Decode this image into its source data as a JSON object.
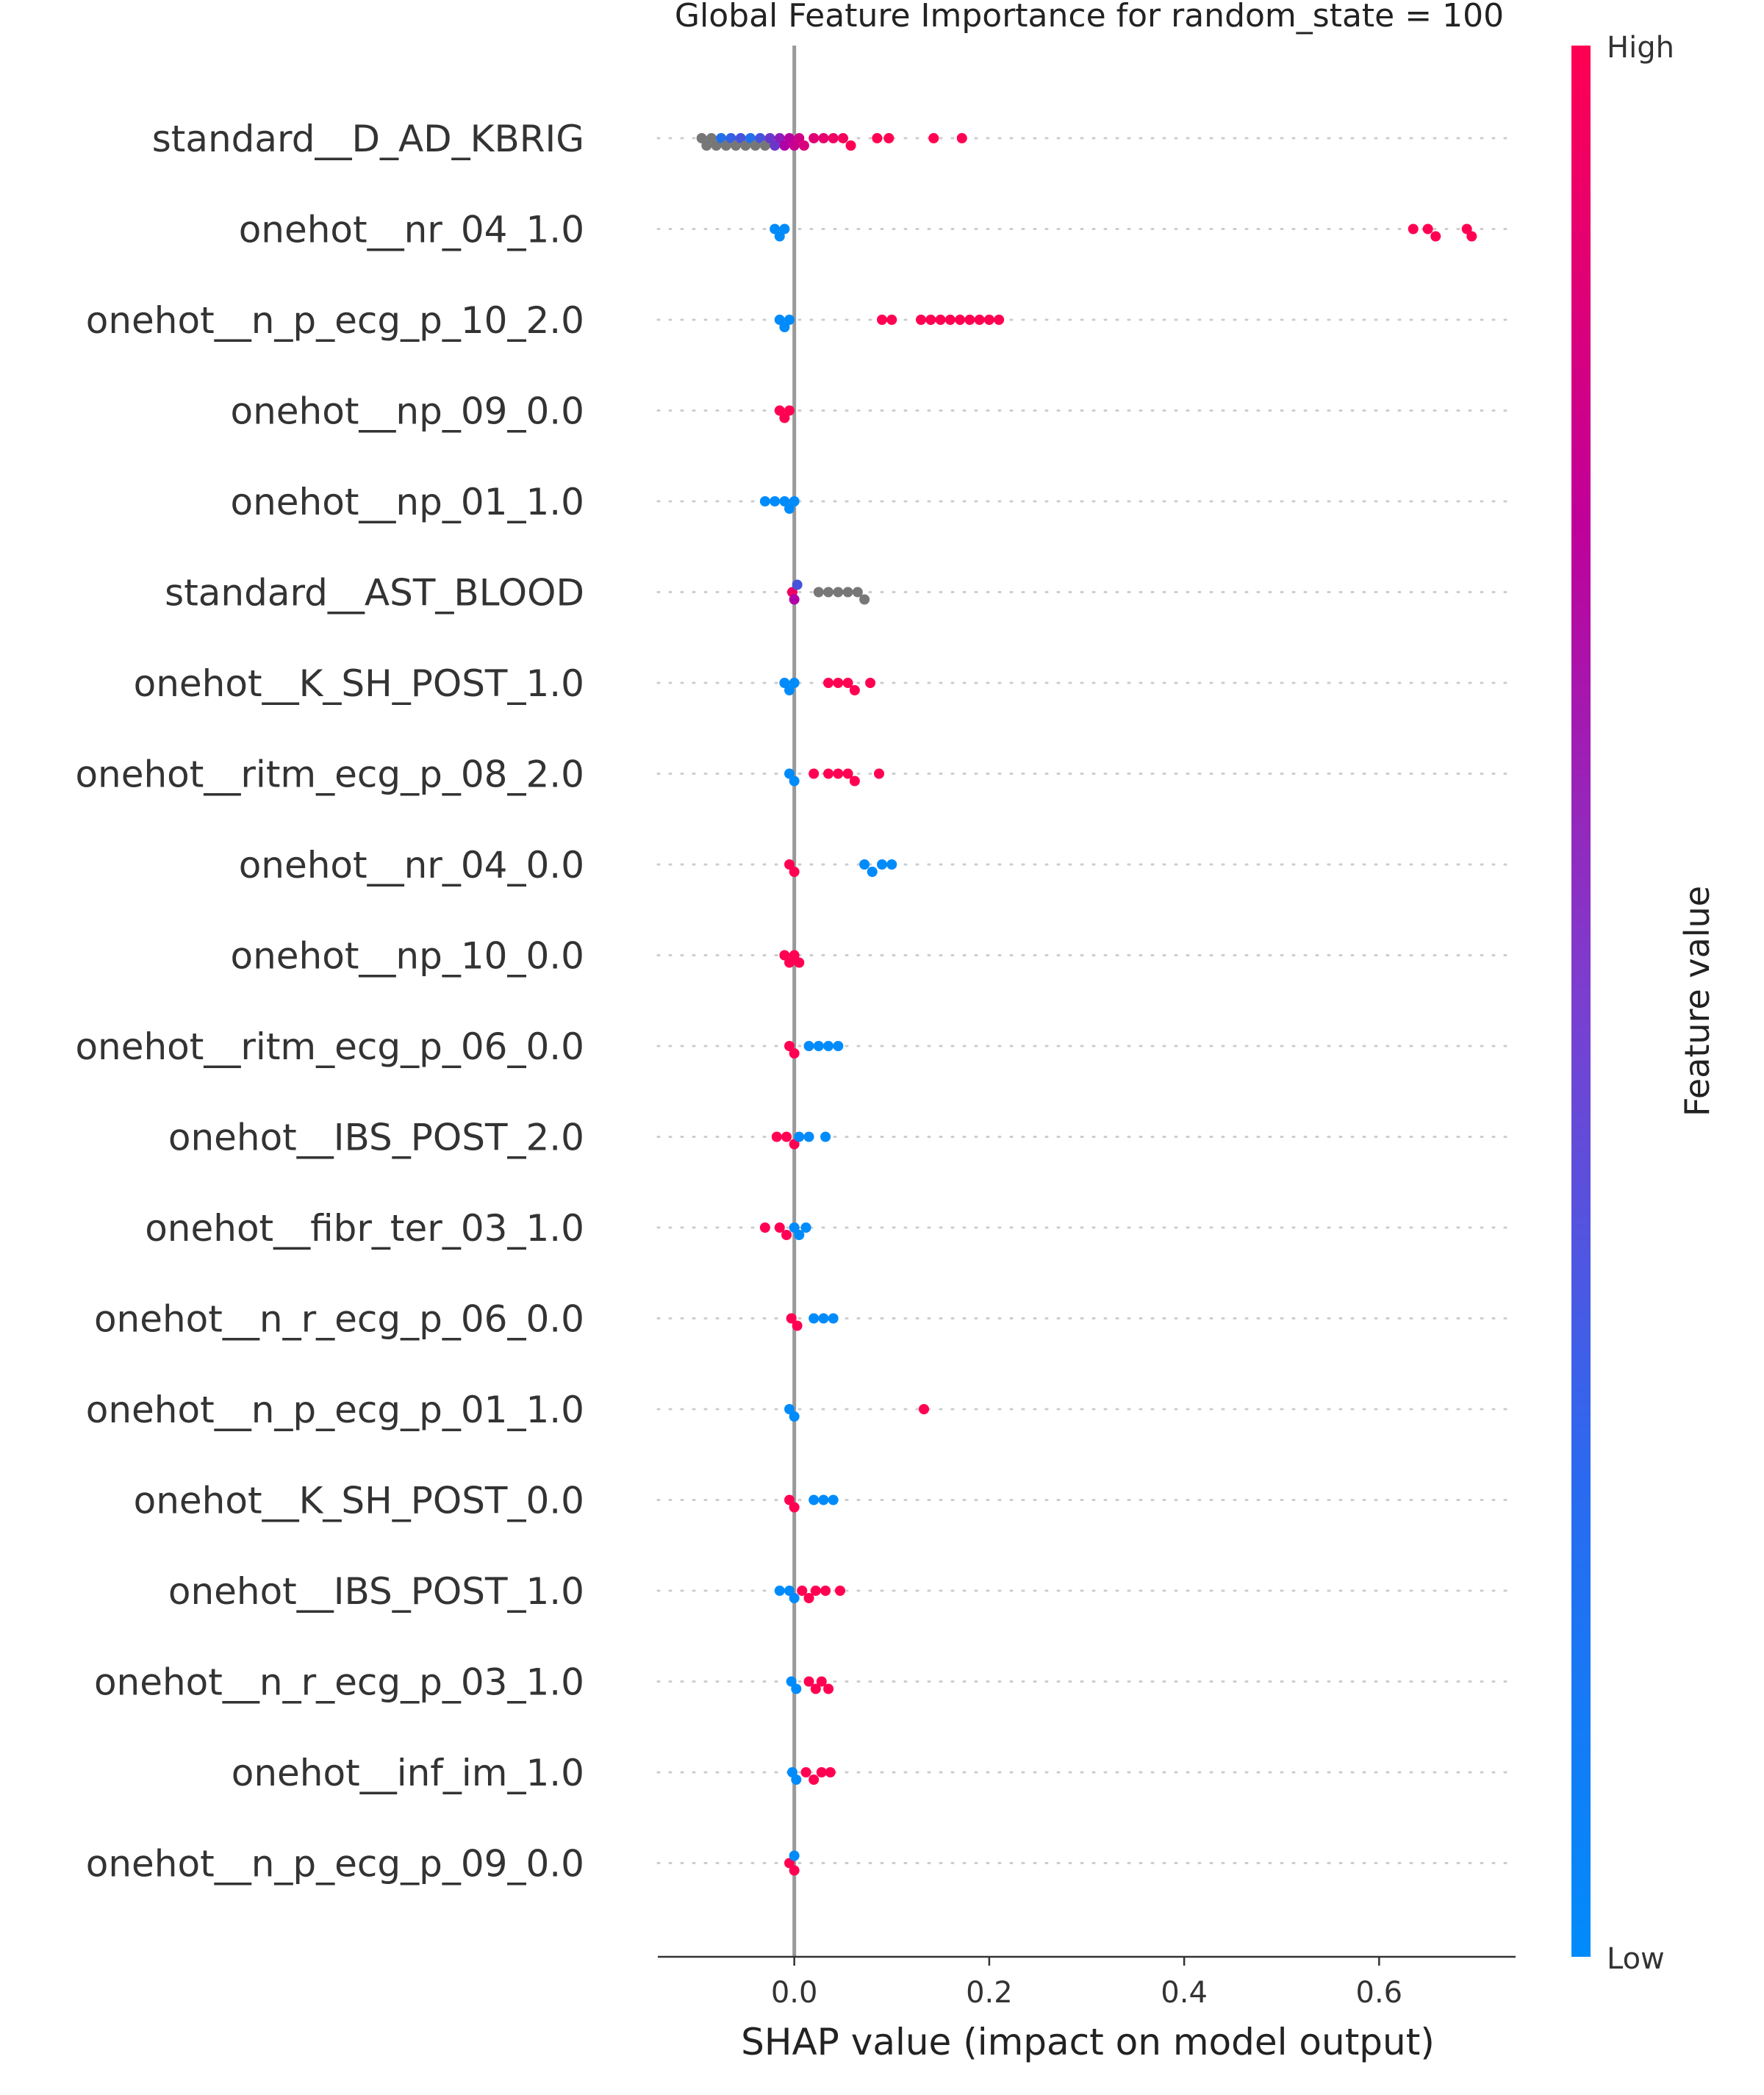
{
  "chart_data": {
    "type": "scatter",
    "subtype": "shap-beeswarm",
    "title": "Global Feature Importance for random_state = 100",
    "xlabel": "SHAP value (impact on model output)",
    "ylabel": "",
    "xlim": [
      -0.14,
      0.74
    ],
    "xticks": [
      0.0,
      0.2,
      0.4,
      0.6
    ],
    "xtick_labels": [
      "0.0",
      "0.2",
      "0.4",
      "0.6"
    ],
    "grid": false,
    "zero_line": true,
    "colors": {
      "high": "#ff0052",
      "mid": "#b000a8",
      "low": "#008bfb",
      "missing": "#777777",
      "row_dots": "#cccccc",
      "zero_line": "#999999"
    },
    "colorbar": {
      "title": "Feature value",
      "high_label": "High",
      "low_label": "Low"
    },
    "features": [
      {
        "name": "standard__D_AD_KBRIG",
        "points": [
          {
            "x": -0.095,
            "v": "na"
          },
          {
            "x": -0.09,
            "v": "na"
          },
          {
            "x": -0.085,
            "v": "na"
          },
          {
            "x": -0.08,
            "v": "na"
          },
          {
            "x": -0.075,
            "v": 0.1
          },
          {
            "x": -0.07,
            "v": "na"
          },
          {
            "x": -0.065,
            "v": 0.15
          },
          {
            "x": -0.06,
            "v": "na"
          },
          {
            "x": -0.055,
            "v": 0.2
          },
          {
            "x": -0.05,
            "v": "na"
          },
          {
            "x": -0.045,
            "v": 0.1
          },
          {
            "x": -0.04,
            "v": "na"
          },
          {
            "x": -0.035,
            "v": 0.2
          },
          {
            "x": -0.03,
            "v": "na"
          },
          {
            "x": -0.025,
            "v": 0.3
          },
          {
            "x": -0.02,
            "v": 0.3
          },
          {
            "x": -0.015,
            "v": 0.4
          },
          {
            "x": -0.01,
            "v": 0.5
          },
          {
            "x": -0.005,
            "v": 0.55
          },
          {
            "x": 0.0,
            "v": 0.65
          },
          {
            "x": 0.005,
            "v": 0.7
          },
          {
            "x": 0.01,
            "v": 0.75
          },
          {
            "x": 0.02,
            "v": 0.8
          },
          {
            "x": 0.03,
            "v": 0.85
          },
          {
            "x": 0.04,
            "v": 0.9
          },
          {
            "x": 0.05,
            "v": 0.95
          },
          {
            "x": 0.058,
            "v": 1.0
          },
          {
            "x": 0.085,
            "v": 1.0
          },
          {
            "x": 0.097,
            "v": 1.0
          },
          {
            "x": 0.143,
            "v": 1.0
          },
          {
            "x": 0.172,
            "v": 1.0
          }
        ]
      },
      {
        "name": "onehot__nr_04_1.0",
        "points": [
          {
            "x": -0.02,
            "v": 0.0
          },
          {
            "x": -0.015,
            "v": 0.0
          },
          {
            "x": -0.01,
            "v": 0.0
          },
          {
            "x": 0.635,
            "v": 1.0
          },
          {
            "x": 0.65,
            "v": 1.0
          },
          {
            "x": 0.658,
            "v": 1.0
          },
          {
            "x": 0.69,
            "v": 1.0
          },
          {
            "x": 0.695,
            "v": 1.0
          }
        ]
      },
      {
        "name": "onehot__n_p_ecg_p_10_2.0",
        "points": [
          {
            "x": -0.015,
            "v": 0.0
          },
          {
            "x": -0.01,
            "v": 0.0
          },
          {
            "x": -0.005,
            "v": 0.0
          },
          {
            "x": 0.09,
            "v": 1.0
          },
          {
            "x": 0.1,
            "v": 1.0
          },
          {
            "x": 0.13,
            "v": 1.0
          },
          {
            "x": 0.14,
            "v": 1.0
          },
          {
            "x": 0.15,
            "v": 1.0
          },
          {
            "x": 0.16,
            "v": 1.0
          },
          {
            "x": 0.17,
            "v": 1.0
          },
          {
            "x": 0.18,
            "v": 1.0
          },
          {
            "x": 0.19,
            "v": 1.0
          },
          {
            "x": 0.2,
            "v": 1.0
          },
          {
            "x": 0.21,
            "v": 1.0
          }
        ]
      },
      {
        "name": "onehot__np_09_0.0",
        "points": [
          {
            "x": -0.015,
            "v": 1.0
          },
          {
            "x": -0.01,
            "v": 1.0
          },
          {
            "x": -0.005,
            "v": 1.0
          }
        ]
      },
      {
        "name": "onehot__np_01_1.0",
        "points": [
          {
            "x": -0.03,
            "v": 0.0
          },
          {
            "x": -0.02,
            "v": 0.0
          },
          {
            "x": -0.01,
            "v": 0.0
          },
          {
            "x": -0.005,
            "v": 0.0
          },
          {
            "x": 0.0,
            "v": 0.0
          }
        ]
      },
      {
        "name": "standard__AST_BLOOD",
        "points": [
          {
            "x": -0.002,
            "v": 0.9
          },
          {
            "x": 0.0,
            "v": 0.5
          },
          {
            "x": 0.003,
            "v": 0.2
          },
          {
            "x": 0.025,
            "v": "na"
          },
          {
            "x": 0.035,
            "v": "na"
          },
          {
            "x": 0.045,
            "v": "na"
          },
          {
            "x": 0.055,
            "v": "na"
          },
          {
            "x": 0.065,
            "v": "na"
          },
          {
            "x": 0.072,
            "v": "na"
          }
        ]
      },
      {
        "name": "onehot__K_SH_POST_1.0",
        "points": [
          {
            "x": -0.01,
            "v": 0.0
          },
          {
            "x": -0.005,
            "v": 0.0
          },
          {
            "x": 0.0,
            "v": 0.0
          },
          {
            "x": 0.035,
            "v": 1.0
          },
          {
            "x": 0.045,
            "v": 1.0
          },
          {
            "x": 0.055,
            "v": 1.0
          },
          {
            "x": 0.062,
            "v": 1.0
          },
          {
            "x": 0.078,
            "v": 1.0
          }
        ]
      },
      {
        "name": "onehot__ritm_ecg_p_08_2.0",
        "points": [
          {
            "x": -0.005,
            "v": 0.0
          },
          {
            "x": 0.0,
            "v": 0.0
          },
          {
            "x": 0.02,
            "v": 1.0
          },
          {
            "x": 0.035,
            "v": 1.0
          },
          {
            "x": 0.045,
            "v": 1.0
          },
          {
            "x": 0.055,
            "v": 1.0
          },
          {
            "x": 0.062,
            "v": 1.0
          },
          {
            "x": 0.087,
            "v": 1.0
          }
        ]
      },
      {
        "name": "onehot__nr_04_0.0",
        "points": [
          {
            "x": -0.005,
            "v": 1.0
          },
          {
            "x": 0.0,
            "v": 1.0
          },
          {
            "x": 0.072,
            "v": 0.0
          },
          {
            "x": 0.08,
            "v": 0.0
          },
          {
            "x": 0.09,
            "v": 0.0
          },
          {
            "x": 0.1,
            "v": 0.0
          }
        ]
      },
      {
        "name": "onehot__np_10_0.0",
        "points": [
          {
            "x": -0.01,
            "v": 1.0
          },
          {
            "x": -0.005,
            "v": 1.0
          },
          {
            "x": 0.0,
            "v": 1.0
          },
          {
            "x": 0.005,
            "v": 1.0
          }
        ]
      },
      {
        "name": "onehot__ritm_ecg_p_06_0.0",
        "points": [
          {
            "x": -0.005,
            "v": 1.0
          },
          {
            "x": 0.0,
            "v": 1.0
          },
          {
            "x": 0.015,
            "v": 0.0
          },
          {
            "x": 0.025,
            "v": 0.0
          },
          {
            "x": 0.035,
            "v": 0.0
          },
          {
            "x": 0.045,
            "v": 0.0
          }
        ]
      },
      {
        "name": "onehot__IBS_POST_2.0",
        "points": [
          {
            "x": -0.018,
            "v": 1.0
          },
          {
            "x": -0.008,
            "v": 1.0
          },
          {
            "x": 0.0,
            "v": 1.0
          },
          {
            "x": 0.005,
            "v": 0.0
          },
          {
            "x": 0.015,
            "v": 0.0
          },
          {
            "x": 0.032,
            "v": 0.0
          }
        ]
      },
      {
        "name": "onehot__fibr_ter_03_1.0",
        "points": [
          {
            "x": -0.03,
            "v": 1.0
          },
          {
            "x": -0.015,
            "v": 1.0
          },
          {
            "x": -0.008,
            "v": 1.0
          },
          {
            "x": 0.0,
            "v": 0.0
          },
          {
            "x": 0.005,
            "v": 0.0
          },
          {
            "x": 0.012,
            "v": 0.0
          }
        ]
      },
      {
        "name": "onehot__n_r_ecg_p_06_0.0",
        "points": [
          {
            "x": -0.003,
            "v": 1.0
          },
          {
            "x": 0.003,
            "v": 1.0
          },
          {
            "x": 0.02,
            "v": 0.0
          },
          {
            "x": 0.03,
            "v": 0.0
          },
          {
            "x": 0.04,
            "v": 0.0
          }
        ]
      },
      {
        "name": "onehot__n_p_ecg_p_01_1.0",
        "points": [
          {
            "x": -0.005,
            "v": 0.0
          },
          {
            "x": 0.0,
            "v": 0.0
          },
          {
            "x": 0.133,
            "v": 1.0
          }
        ]
      },
      {
        "name": "onehot__K_SH_POST_0.0",
        "points": [
          {
            "x": -0.005,
            "v": 1.0
          },
          {
            "x": 0.0,
            "v": 1.0
          },
          {
            "x": 0.02,
            "v": 0.0
          },
          {
            "x": 0.03,
            "v": 0.0
          },
          {
            "x": 0.04,
            "v": 0.0
          }
        ]
      },
      {
        "name": "onehot__IBS_POST_1.0",
        "points": [
          {
            "x": -0.015,
            "v": 0.0
          },
          {
            "x": -0.005,
            "v": 0.0
          },
          {
            "x": 0.0,
            "v": 0.0
          },
          {
            "x": 0.008,
            "v": 1.0
          },
          {
            "x": 0.015,
            "v": 1.0
          },
          {
            "x": 0.022,
            "v": 1.0
          },
          {
            "x": 0.032,
            "v": 1.0
          },
          {
            "x": 0.047,
            "v": 1.0
          }
        ]
      },
      {
        "name": "onehot__n_r_ecg_p_03_1.0",
        "points": [
          {
            "x": -0.003,
            "v": 0.0
          },
          {
            "x": 0.002,
            "v": 0.0
          },
          {
            "x": 0.015,
            "v": 1.0
          },
          {
            "x": 0.022,
            "v": 1.0
          },
          {
            "x": 0.028,
            "v": 1.0
          },
          {
            "x": 0.035,
            "v": 1.0
          }
        ]
      },
      {
        "name": "onehot__inf_im_1.0",
        "points": [
          {
            "x": -0.002,
            "v": 0.0
          },
          {
            "x": 0.002,
            "v": 0.0
          },
          {
            "x": 0.012,
            "v": 1.0
          },
          {
            "x": 0.02,
            "v": 1.0
          },
          {
            "x": 0.028,
            "v": 1.0
          },
          {
            "x": 0.037,
            "v": 1.0
          }
        ]
      },
      {
        "name": "onehot__n_p_ecg_p_09_0.0",
        "points": [
          {
            "x": -0.005,
            "v": 1.0
          },
          {
            "x": 0.0,
            "v": 1.0
          },
          {
            "x": 0.0,
            "v": 0.0
          }
        ]
      }
    ]
  }
}
